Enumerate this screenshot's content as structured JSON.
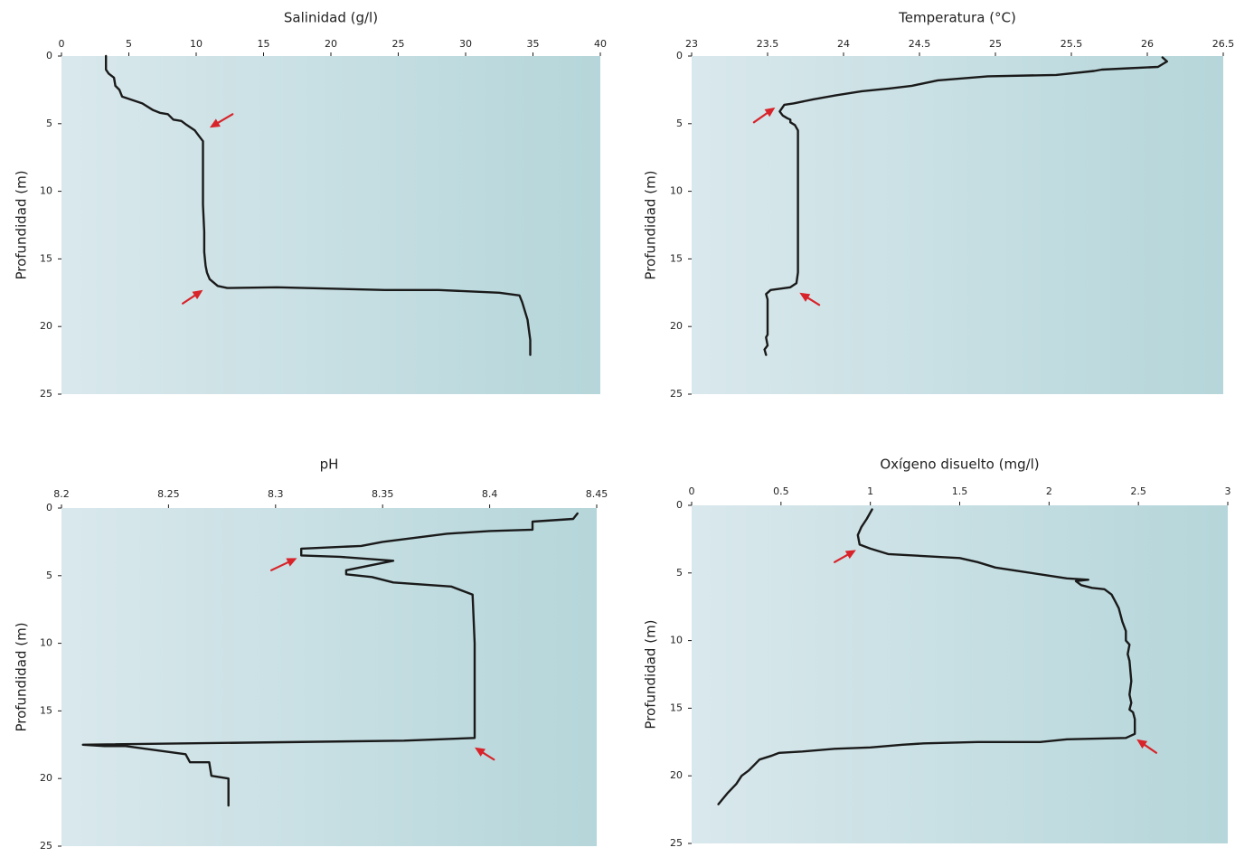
{
  "colors": {
    "line": "#1a1a1a",
    "arrow": "#d8232a",
    "panel_left": "#d9e8ec",
    "panel_right": "#b5d6da",
    "text": "#222222"
  },
  "chart_data": [
    {
      "type": "line",
      "title": "Salinidad (g/l)",
      "xlabel": "",
      "ylabel": "Profundidad (m)",
      "xlim": [
        0,
        40
      ],
      "ylim": [
        0,
        25
      ],
      "x_ticks": [
        "0",
        "5",
        "10",
        "15",
        "20",
        "25",
        "30",
        "35",
        "40"
      ],
      "y_ticks": [
        "0",
        "5",
        "10",
        "15",
        "20",
        "25"
      ],
      "x_axis_position": "top",
      "y_inverted": true,
      "grid": false,
      "series": [
        {
          "x": [
            3.3,
            3.3,
            3.5,
            3.9,
            4.0,
            4.3,
            4.5,
            5.1,
            6.0,
            6.8,
            7.3,
            7.9,
            8.3,
            8.9,
            9.3,
            9.9,
            10.2,
            10.5,
            10.5,
            10.5,
            10.6,
            10.6,
            10.7,
            10.8,
            11.0,
            11.6,
            12.3,
            16.0,
            24.0,
            28.0,
            32.5,
            34.0,
            34.2,
            34.6,
            34.8,
            34.8
          ],
          "y": [
            0.0,
            1.0,
            1.3,
            1.6,
            2.2,
            2.5,
            3.0,
            3.2,
            3.5,
            4.0,
            4.2,
            4.3,
            4.7,
            4.8,
            5.1,
            5.5,
            5.9,
            6.3,
            8.0,
            11.0,
            13.0,
            14.5,
            15.5,
            16.0,
            16.5,
            17.0,
            17.15,
            17.1,
            17.3,
            17.3,
            17.5,
            17.7,
            18.2,
            19.5,
            21.0,
            22.1
          ]
        }
      ],
      "arrows": [
        {
          "tip": [
            11.0,
            5.3
          ],
          "tail": [
            12.7,
            4.3
          ]
        },
        {
          "tip": [
            10.5,
            17.3
          ],
          "tail": [
            9.0,
            18.3
          ]
        }
      ]
    },
    {
      "type": "line",
      "title": "Temperatura (°C)",
      "xlabel": "",
      "ylabel": "Profundidad (m)",
      "xlim": [
        23,
        26.5
      ],
      "ylim": [
        0,
        25
      ],
      "x_ticks": [
        "23",
        "23.5",
        "24",
        "24.5",
        "25",
        "25.5",
        "26",
        "26.5"
      ],
      "y_ticks": [
        "0",
        "5",
        "10",
        "15",
        "20",
        "25"
      ],
      "x_axis_position": "top",
      "y_inverted": true,
      "grid": false,
      "series": [
        {
          "x": [
            26.1,
            26.13,
            26.07,
            25.88,
            25.7,
            25.65,
            25.4,
            24.95,
            24.62,
            24.45,
            24.3,
            24.12,
            23.95,
            23.8,
            23.67,
            23.61,
            23.58,
            23.6,
            23.63,
            23.65,
            23.65,
            23.68,
            23.7,
            23.7,
            23.7,
            23.7,
            23.69,
            23.65,
            23.52,
            23.49,
            23.5,
            23.5,
            23.5,
            23.49,
            23.5,
            23.48,
            23.49
          ],
          "y": [
            0.1,
            0.4,
            0.8,
            0.9,
            1.0,
            1.1,
            1.4,
            1.5,
            1.8,
            2.2,
            2.4,
            2.6,
            2.9,
            3.2,
            3.5,
            3.6,
            4.1,
            4.4,
            4.6,
            4.7,
            4.9,
            5.1,
            5.5,
            8.0,
            12.0,
            16.0,
            16.8,
            17.1,
            17.3,
            17.6,
            18.0,
            19.5,
            20.6,
            20.8,
            21.4,
            21.7,
            22.1
          ]
        }
      ],
      "arrows": [
        {
          "tip": [
            23.55,
            3.8
          ],
          "tail": [
            23.41,
            4.9
          ]
        },
        {
          "tip": [
            23.71,
            17.5
          ],
          "tail": [
            23.84,
            18.4
          ]
        }
      ]
    },
    {
      "type": "line",
      "title": "pH",
      "xlabel": "",
      "ylabel": "Profundidad (m)",
      "xlim": [
        8.2,
        8.45
      ],
      "ylim": [
        0,
        25
      ],
      "x_ticks": [
        "8.2",
        "8.25",
        "8.3",
        "8.35",
        "8.4",
        "8.45"
      ],
      "y_ticks": [
        "0",
        "5",
        "10",
        "15",
        "20",
        "25"
      ],
      "x_axis_position": "top",
      "y_inverted": true,
      "grid": false,
      "series": [
        {
          "x": [
            8.441,
            8.439,
            8.42,
            8.42,
            8.4,
            8.38,
            8.365,
            8.35,
            8.34,
            8.312,
            8.312,
            8.33,
            8.355,
            8.333,
            8.333,
            8.345,
            8.355,
            8.382,
            8.392,
            8.393,
            8.393,
            8.393,
            8.36,
            8.21,
            8.22,
            8.23,
            8.258,
            8.26,
            8.269,
            8.27,
            8.278,
            8.278
          ],
          "y": [
            0.4,
            0.8,
            1.0,
            1.6,
            1.7,
            1.9,
            2.2,
            2.5,
            2.8,
            3.0,
            3.5,
            3.6,
            3.9,
            4.6,
            4.9,
            5.1,
            5.5,
            5.8,
            6.4,
            10.0,
            14.0,
            17.0,
            17.2,
            17.5,
            17.6,
            17.6,
            18.2,
            18.8,
            18.8,
            19.8,
            20.0,
            22.0
          ]
        }
      ],
      "arrows": [
        {
          "tip": [
            8.31,
            3.7
          ],
          "tail": [
            8.298,
            4.6
          ]
        },
        {
          "tip": [
            8.393,
            17.7
          ],
          "tail": [
            8.402,
            18.6
          ]
        }
      ]
    },
    {
      "type": "line",
      "title": "Oxígeno disuelto (mg/l)",
      "xlabel": "",
      "ylabel": "Profundidad (m)",
      "xlim": [
        0,
        3
      ],
      "ylim": [
        0,
        25
      ],
      "x_ticks": [
        "0",
        "0.5",
        "1",
        "1.5",
        "2",
        "2.5",
        "3"
      ],
      "y_ticks": [
        "0",
        "5",
        "10",
        "15",
        "20",
        "25"
      ],
      "x_axis_position": "top",
      "y_inverted": true,
      "grid": false,
      "series": [
        {
          "x": [
            1.01,
            0.98,
            0.95,
            0.93,
            0.94,
            1.0,
            1.1,
            1.5,
            1.6,
            1.7,
            1.85,
            2.0,
            2.1,
            2.22,
            2.15,
            2.18,
            2.24,
            2.31,
            2.35,
            2.37,
            2.39,
            2.41,
            2.43,
            2.43,
            2.45,
            2.44,
            2.45,
            2.46,
            2.45,
            2.46,
            2.45,
            2.47,
            2.48,
            2.48,
            2.43,
            2.1,
            1.95,
            1.6,
            1.3,
            1.18,
            1.0,
            0.8,
            0.62,
            0.49,
            0.45,
            0.38,
            0.35,
            0.32,
            0.28,
            0.25,
            0.2,
            0.15
          ],
          "y": [
            0.3,
            1.0,
            1.6,
            2.2,
            2.9,
            3.2,
            3.6,
            3.9,
            4.2,
            4.6,
            4.9,
            5.2,
            5.4,
            5.5,
            5.6,
            5.9,
            6.1,
            6.2,
            6.6,
            7.1,
            7.6,
            8.6,
            9.3,
            10.0,
            10.3,
            11.0,
            11.5,
            13.0,
            14.0,
            14.6,
            15.1,
            15.3,
            15.8,
            16.9,
            17.2,
            17.3,
            17.5,
            17.5,
            17.6,
            17.7,
            17.9,
            18.0,
            18.2,
            18.3,
            18.5,
            18.8,
            19.2,
            19.6,
            20.0,
            20.6,
            21.3,
            22.1
          ]
        }
      ],
      "arrows": [
        {
          "tip": [
            0.92,
            3.3
          ],
          "tail": [
            0.8,
            4.2
          ]
        },
        {
          "tip": [
            2.49,
            17.3
          ],
          "tail": [
            2.6,
            18.3
          ]
        }
      ]
    }
  ]
}
